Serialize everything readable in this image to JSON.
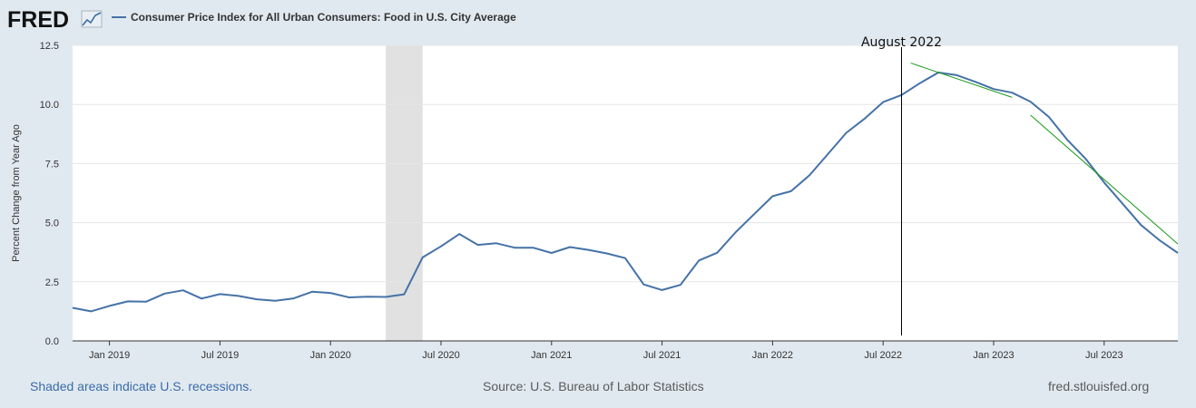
{
  "header": {
    "logo": "FRED",
    "series_title": "Consumer Price Index for All Urban Consumers: Food in U.S. City Average"
  },
  "chart_data": {
    "type": "line",
    "title": "Consumer Price Index for All Urban Consumers: Food in U.S. City Average",
    "ylabel": "Percent Change from Year Ago",
    "xlabel": "",
    "ylim": [
      0,
      12.5
    ],
    "yticks": [
      0.0,
      2.5,
      5.0,
      7.5,
      10.0,
      12.5
    ],
    "ytick_labels": [
      "0.0",
      "2.5",
      "5.0",
      "7.5",
      "10.0",
      "12.5"
    ],
    "xtick_labels": [
      "Jan 2019",
      "Jul 2019",
      "Jan 2020",
      "Jul 2020",
      "Jan 2021",
      "Jul 2021",
      "Jan 2022",
      "Jul 2022",
      "Jan 2023",
      "Jul 2023"
    ],
    "xtick_month_index": [
      12,
      18,
      24,
      30,
      36,
      42,
      48,
      54,
      60,
      66
    ],
    "x_start": "Jan 2018",
    "x_month_range": [
      10,
      70
    ],
    "series": [
      {
        "name": "Consumer Price Index for All Urban Consumers: Food in U.S. City Average",
        "color": "#4572a7",
        "start_month_index": 10,
        "values": [
          1.4,
          1.25,
          1.48,
          1.67,
          1.66,
          2.0,
          2.14,
          1.79,
          1.98,
          1.9,
          1.76,
          1.7,
          1.8,
          2.08,
          2.03,
          1.84,
          1.87,
          1.86,
          1.97,
          3.53,
          4.0,
          4.52,
          4.06,
          4.13,
          3.94,
          3.94,
          3.72,
          3.97,
          3.85,
          3.7,
          3.5,
          2.39,
          2.15,
          2.37,
          3.4,
          3.73,
          4.6,
          5.36,
          6.12,
          6.33,
          7.0,
          7.9,
          8.8,
          9.4,
          10.1,
          10.4,
          10.9,
          11.35,
          11.24,
          10.96,
          10.65,
          10.5,
          10.12,
          9.47,
          8.5,
          7.7,
          6.7,
          5.8,
          4.9,
          4.26,
          3.72
        ]
      }
    ],
    "recession": {
      "label": "Shaded areas indicate U.S. recessions.",
      "start_month_index": 27,
      "end_month_index": 29,
      "color": "#e1e1e1"
    },
    "annotations": [
      {
        "text": "August 2022",
        "type": "vertical-line",
        "month_index": 55
      },
      {
        "type": "trend-line",
        "color": "#1a9a1a",
        "from": {
          "month_index": 55.5,
          "value": 11.75
        },
        "to": {
          "month_index": 61,
          "value": 10.3
        }
      },
      {
        "type": "trend-line",
        "color": "#1a9a1a",
        "from": {
          "month_index": 62,
          "value": 9.55
        },
        "to": {
          "month_index": 70,
          "value": 4.1
        }
      }
    ]
  },
  "footer": {
    "note": "Shaded areas indicate U.S. recessions.",
    "source": "Source: U.S. Bureau of Labor Statistics",
    "url": "fred.stlouisfed.org"
  }
}
